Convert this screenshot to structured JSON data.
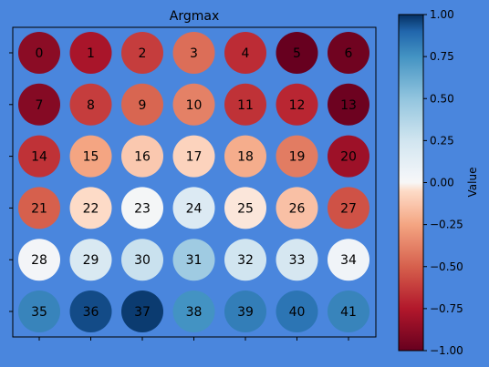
{
  "page": {
    "background": "#4a86dd"
  },
  "chart_data": {
    "type": "heatmap",
    "title": "Argmax",
    "xlabel": "",
    "ylabel": "",
    "rows": 6,
    "cols": 7,
    "colormap": "RdBu",
    "grid": false,
    "labels": [
      [
        "0",
        "1",
        "2",
        "3",
        "4",
        "5",
        "6"
      ],
      [
        "7",
        "8",
        "9",
        "10",
        "11",
        "12",
        "13"
      ],
      [
        "14",
        "15",
        "16",
        "17",
        "18",
        "19",
        "20"
      ],
      [
        "21",
        "22",
        "23",
        "24",
        "25",
        "26",
        "27"
      ],
      [
        "28",
        "29",
        "30",
        "31",
        "32",
        "33",
        "34"
      ],
      [
        "35",
        "36",
        "37",
        "38",
        "39",
        "40",
        "41"
      ]
    ],
    "values": [
      [
        -0.88,
        -0.78,
        -0.62,
        -0.45,
        -0.68,
        -1.0,
        -0.97
      ],
      [
        -0.9,
        -0.62,
        -0.48,
        -0.38,
        -0.66,
        -0.7,
        -0.98
      ],
      [
        -0.66,
        -0.25,
        -0.12,
        -0.08,
        -0.22,
        -0.4,
        -0.82
      ],
      [
        -0.5,
        -0.05,
        0.02,
        0.18,
        -0.03,
        -0.15,
        -0.55
      ],
      [
        0.03,
        0.2,
        0.28,
        0.45,
        0.25,
        0.22,
        0.05
      ],
      [
        0.8,
        0.95,
        0.98,
        0.75,
        0.82,
        0.85,
        0.8
      ]
    ],
    "colorbar": {
      "label": "Value",
      "range": [
        -1.0,
        1.0
      ],
      "ticks": [
        "1.00",
        "0.75",
        "0.50",
        "0.25",
        "0.00",
        "−0.25",
        "−0.50",
        "−0.75",
        "−1.00"
      ]
    }
  }
}
